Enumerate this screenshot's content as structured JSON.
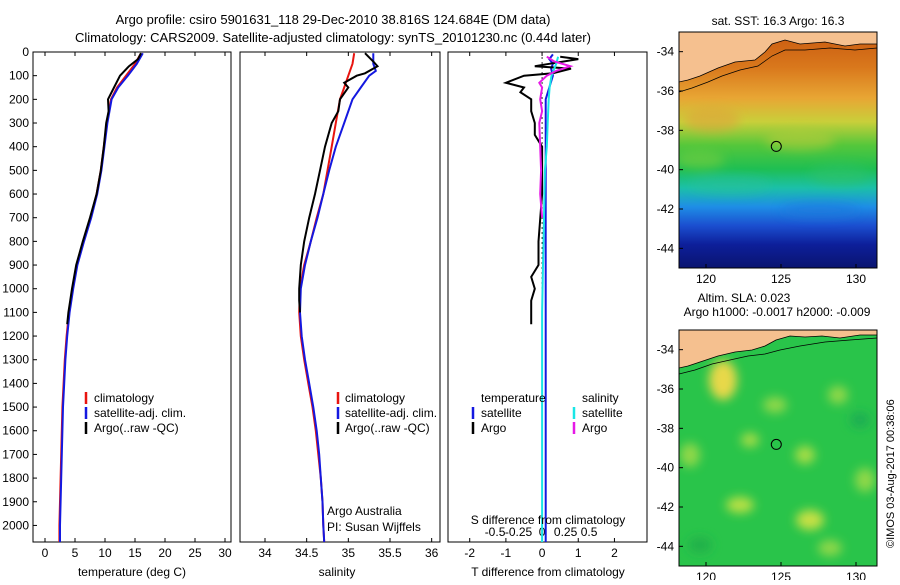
{
  "title": {
    "line1": "Argo profile: csiro 5901631_118 29-Dec-2010 38.816S 124.684E (DM data)",
    "line2": "Climatology: CARS2009. Satellite-adjusted climatology: synTS_20101230.nc (0.44d later)"
  },
  "colors": {
    "climatology": "#e8140f",
    "satellite": "#1418e0",
    "argo": "#000000",
    "salinity_sat": "#19e6e6",
    "salinity_argo": "#e619e6",
    "land": "#f5c08f"
  },
  "watermark": "©IMOS 03-Aug-2017 00:38:06",
  "annotations": {
    "argo_australia": "Argo Australia",
    "pi": "PI: Susan Wijffels"
  },
  "chart_data": [
    {
      "type": "line",
      "name": "temperature-profile",
      "xlabel": "temperature (deg C)",
      "ylabel": "",
      "xlim": [
        -2,
        31
      ],
      "ylim": [
        2070,
        0
      ],
      "xticks": [
        "0",
        "5",
        "10",
        "15",
        "20",
        "25",
        "30"
      ],
      "yticks": [
        "0",
        "100",
        "200",
        "300",
        "400",
        "500",
        "600",
        "700",
        "800",
        "900",
        "1000",
        "1100",
        "1200",
        "1300",
        "1400",
        "1500",
        "1600",
        "1700",
        "1800",
        "1900",
        "2000"
      ],
      "legend": [
        "climatology",
        "satellite-adj. clim.",
        "Argo(..raw -QC)"
      ],
      "series": [
        {
          "key": "climatology",
          "depth": [
            5,
            50,
            100,
            150,
            200,
            300,
            400,
            500,
            600,
            700,
            800,
            900,
            1000,
            1100,
            1200,
            1300,
            1400,
            1500,
            1600,
            1700,
            1800,
            1900,
            2000,
            2070
          ],
          "values": [
            16,
            15,
            13.5,
            12,
            11,
            10.3,
            9.8,
            9.3,
            8.6,
            7.6,
            6.4,
            5.3,
            4.6,
            4.0,
            3.6,
            3.3,
            3.1,
            2.9,
            2.8,
            2.7,
            2.6,
            2.5,
            2.4,
            2.4
          ]
        },
        {
          "key": "satellite",
          "depth": [
            5,
            50,
            100,
            150,
            200,
            300,
            400,
            500,
            600,
            700,
            800,
            900,
            1000,
            1100,
            1200,
            1300,
            1400,
            1500,
            1600,
            1700,
            1800,
            1900,
            2000,
            2070
          ],
          "values": [
            16.3,
            15.3,
            13.8,
            12.2,
            11.1,
            10.4,
            9.9,
            9.4,
            8.7,
            7.7,
            6.5,
            5.4,
            4.7,
            4.1,
            3.7,
            3.4,
            3.2,
            3.0,
            2.9,
            2.8,
            2.7,
            2.6,
            2.5,
            2.5
          ]
        },
        {
          "key": "argo",
          "depth": [
            5,
            30,
            60,
            100,
            150,
            200,
            250,
            300,
            400,
            500,
            600,
            700,
            800,
            900,
            1000,
            1050,
            1100,
            1150
          ],
          "values": [
            16,
            15.5,
            14,
            12.5,
            11.5,
            10.5,
            10.6,
            10.2,
            9.8,
            9.3,
            8.6,
            7.5,
            6.3,
            5.2,
            4.5,
            4.2,
            3.9,
            3.7
          ]
        }
      ]
    },
    {
      "type": "line",
      "name": "salinity-profile",
      "xlabel": "salinity",
      "xlim": [
        33.7,
        36.1
      ],
      "ylim": [
        2070,
        0
      ],
      "xticks": [
        "34",
        "34.5",
        "35",
        "35.5",
        "36"
      ],
      "legend": [
        "climatology",
        "satellite-adj. clim.",
        "Argo(..raw -QC)"
      ],
      "series": [
        {
          "key": "climatology",
          "depth": [
            5,
            50,
            100,
            150,
            200,
            300,
            400,
            500,
            600,
            700,
            800,
            900,
            1000,
            1100,
            1200,
            1300,
            1400,
            1500,
            1600,
            1700,
            1800,
            1900,
            2000,
            2070
          ],
          "values": [
            35.07,
            35.05,
            35.0,
            34.95,
            34.9,
            34.85,
            34.8,
            34.75,
            34.7,
            34.62,
            34.55,
            34.47,
            34.42,
            34.41,
            34.43,
            34.47,
            34.52,
            34.57,
            34.61,
            34.64,
            34.67,
            34.69,
            34.7,
            34.71
          ]
        },
        {
          "key": "satellite",
          "depth": [
            5,
            50,
            80,
            100,
            150,
            200,
            300,
            400,
            500,
            600,
            700,
            800,
            900,
            1000,
            1100,
            1200,
            1300,
            1400,
            1500,
            1600,
            1700,
            1800,
            1900,
            2000,
            2070
          ],
          "values": [
            35.3,
            35.3,
            35.33,
            35.25,
            35.15,
            35.05,
            34.95,
            34.85,
            34.77,
            34.7,
            34.63,
            34.55,
            34.48,
            34.43,
            34.42,
            34.44,
            34.48,
            34.53,
            34.58,
            34.62,
            34.65,
            34.67,
            34.69,
            34.7,
            34.71
          ]
        },
        {
          "key": "argo",
          "depth": [
            5,
            40,
            60,
            90,
            100,
            130,
            150,
            200,
            250,
            300,
            400,
            500,
            600,
            700,
            800,
            900,
            1000,
            1050,
            1100
          ],
          "values": [
            35.2,
            35.3,
            35.35,
            35.2,
            35.1,
            34.95,
            35.0,
            34.9,
            34.88,
            34.8,
            34.72,
            34.66,
            34.6,
            34.53,
            34.47,
            34.43,
            34.41,
            34.41,
            34.42
          ]
        }
      ]
    },
    {
      "type": "line",
      "name": "difference-profile",
      "xlabel": "T difference from climatology",
      "toplabel": "S difference from climatology",
      "xlim": [
        -2.6,
        2.9
      ],
      "ylim": [
        2070,
        0
      ],
      "xticks": [
        "-2",
        "-1",
        "0",
        "1",
        "2"
      ],
      "sticks": [
        "-0.5",
        "-0.25",
        "0",
        "0.25",
        "0.5"
      ],
      "legend": {
        "temperature_title": "temperature",
        "salinity_title": "salinity",
        "items": [
          "satellite",
          "Argo",
          "satellite",
          "Argo"
        ]
      },
      "series": [
        {
          "key": "t-satellite",
          "depth": [
            10,
            30,
            50,
            70,
            100,
            150,
            200,
            300,
            400,
            500,
            600,
            800,
            1000,
            1200,
            1400,
            1600,
            1800,
            2000,
            2070
          ],
          "values": [
            0.3,
            0.2,
            0.3,
            0.25,
            0.3,
            0.2,
            0.1,
            0.1,
            0.1,
            0.1,
            0.1,
            0.1,
            0.1,
            0.1,
            0.1,
            0.1,
            0.1,
            0.1,
            0.1
          ]
        },
        {
          "key": "t-argo",
          "depth": [
            20,
            30,
            50,
            60,
            70,
            90,
            100,
            130,
            150,
            170,
            200,
            250,
            300,
            350,
            400,
            500,
            600,
            700,
            800,
            900,
            950,
            1000,
            1050,
            1100,
            1150
          ],
          "values": [
            0.5,
            1.0,
            0.2,
            -0.2,
            0.8,
            0.3,
            -0.5,
            -1.0,
            -0.5,
            -0.6,
            -0.3,
            -0.3,
            -0.2,
            -0.2,
            0.0,
            0.0,
            0.0,
            -0.05,
            -0.1,
            -0.1,
            -0.3,
            -0.2,
            -0.3,
            -0.3,
            -0.3
          ]
        },
        {
          "key": "s-satellite",
          "depth": [
            20,
            50,
            80,
            100,
            150,
            200,
            300,
            400,
            500,
            700,
            900,
            1100,
            1300,
            1500,
            1700,
            1900,
            2070
          ],
          "values": [
            0.17,
            0.15,
            0.12,
            0.1,
            0.08,
            0.07,
            0.06,
            0.05,
            0.03,
            0.02,
            0.01,
            0.0,
            0.0,
            0.0,
            0.0,
            0.0,
            0.0
          ]
        },
        {
          "key": "s-argo",
          "depth": [
            20,
            40,
            60,
            80,
            100,
            130,
            150,
            200,
            250,
            300,
            400,
            500,
            600,
            700
          ],
          "values": [
            0.05,
            0.13,
            0.3,
            0.15,
            0.05,
            -0.03,
            0.0,
            -0.02,
            0.0,
            -0.03,
            -0.02,
            -0.01,
            -0.02,
            0.0
          ]
        }
      ]
    },
    {
      "type": "heatmap",
      "name": "sst-map",
      "title": "sat. SST: 16.3 Argo: 16.3",
      "xlim": [
        118.2,
        131.4
      ],
      "ylim": [
        -45,
        -33
      ],
      "xticks": [
        "120",
        "125",
        "130"
      ],
      "yticks": [
        "-34",
        "-36",
        "-38",
        "-40",
        "-42",
        "-44"
      ],
      "marker": {
        "lon": 124.684,
        "lat": -38.816
      }
    },
    {
      "type": "heatmap",
      "name": "sla-map",
      "title": "Altim. SLA: 0.023",
      "subtitle": "Argo h1000: -0.0017 h2000: -0.009",
      "xlim": [
        118.2,
        131.4
      ],
      "ylim": [
        -45,
        -33
      ],
      "xticks": [
        "120",
        "125",
        "130"
      ],
      "yticks": [
        "-34",
        "-36",
        "-38",
        "-40",
        "-42",
        "-44"
      ],
      "marker": {
        "lon": 124.684,
        "lat": -38.816
      }
    }
  ]
}
